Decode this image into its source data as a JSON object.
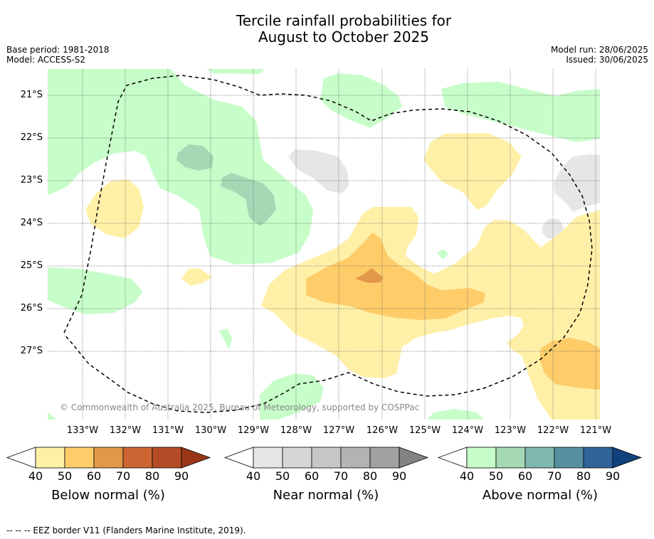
{
  "title_line1": "Tercile rainfall probabilities for",
  "title_line2": "August to October 2025",
  "base_period": "Base period: 1981-2018",
  "model": "Model: ACCESS-S2",
  "model_run": "Model run: 28/06/2025",
  "issued": "Issued: 30/06/2025",
  "copyright": "© Commonwealth of Australia 2025, Bureau of Meteorology, supported by COSPPac",
  "lat_labels": [
    "21°S",
    "22°S",
    "23°S",
    "24°S",
    "25°S",
    "26°S",
    "27°S"
  ],
  "lon_labels": [
    "133°W",
    "132°W",
    "131°W",
    "130°W",
    "129°W",
    "128°W",
    "127°W",
    "126°W",
    "125°W",
    "124°W",
    "123°W",
    "122°W",
    "121°W"
  ],
  "colorbars": [
    {
      "label": "Below normal (%)",
      "ticks": [
        "40",
        "50",
        "60",
        "70",
        "80",
        "90"
      ],
      "colors": [
        "#fff0a8",
        "#fecd6a",
        "#e29849",
        "#cc6532",
        "#b34c26",
        "#9a3618"
      ]
    },
    {
      "label": "Near normal (%)",
      "ticks": [
        "40",
        "50",
        "60",
        "70",
        "80",
        "90"
      ],
      "colors": [
        "#e6e6e6",
        "#d6d6d6",
        "#c7c7c7",
        "#b3b3b3",
        "#a2a2a2",
        "#838383"
      ]
    },
    {
      "label": "Above normal (%)",
      "ticks": [
        "40",
        "50",
        "60",
        "70",
        "80",
        "90"
      ],
      "colors": [
        "#c7fdc9",
        "#a5d8b5",
        "#80b7b0",
        "#56909f",
        "#30649a",
        "#12427e"
      ]
    }
  ],
  "footer": "--  --  -- EEZ border V11 (Flanders Marine Institute, 2019)."
}
